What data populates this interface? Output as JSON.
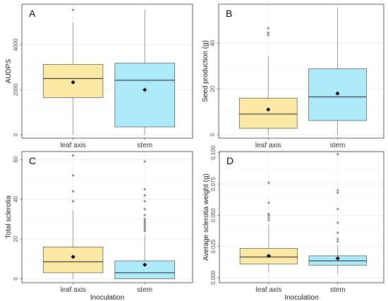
{
  "colors": {
    "leaf_axis_fill": "#FDE9A6",
    "stem_fill": "#ADEBFA",
    "box_line": "#333333",
    "whisker": "#7f7f7f",
    "outlier": "#8c8c8c",
    "mean_marker": "#000000",
    "grid": "#ebebeb",
    "panel_border": "#333333"
  },
  "chart_data": [
    {
      "type": "boxplot",
      "panel_label": "A",
      "xlabel": "",
      "ylabel": "AUDPS",
      "categories": [
        "leaf axis",
        "stem"
      ],
      "ylim": [
        -150,
        5800
      ],
      "yticks": [
        0,
        2000,
        4000
      ],
      "grid": true,
      "boxes": [
        {
          "name": "leaf axis",
          "whisker_low": 0,
          "q1": 1650,
          "median": 2500,
          "q3": 3130,
          "whisker_high": 4980,
          "mean": 2330,
          "outliers": [
            5550
          ]
        },
        {
          "name": "stem",
          "whisker_low": 0,
          "q1": 350,
          "median": 2420,
          "q3": 3180,
          "whisker_high": 5550,
          "mean": 2000,
          "outliers": []
        }
      ]
    },
    {
      "type": "boxplot",
      "panel_label": "B",
      "xlabel": "",
      "ylabel": "Seed production (g)",
      "categories": [
        "leaf axis",
        "stem"
      ],
      "ylim": [
        -1.5,
        57
      ],
      "yticks": [
        0,
        20,
        40
      ],
      "grid": true,
      "boxes": [
        {
          "name": "leaf axis",
          "whisker_low": 0,
          "q1": 2.8,
          "median": 9,
          "q3": 16,
          "whisker_high": 34.5,
          "mean": 11,
          "outliers": [
            43.5,
            44.5,
            46.5
          ]
        },
        {
          "name": "stem",
          "whisker_low": 0,
          "q1": 6.2,
          "median": 16.5,
          "q3": 28.8,
          "whisker_high": 55.5,
          "mean": 18,
          "outliers": []
        }
      ]
    },
    {
      "type": "boxplot",
      "panel_label": "C",
      "xlabel": "Inoculation",
      "ylabel": "Total sclerotia",
      "categories": [
        "leaf axis",
        "stem"
      ],
      "ylim": [
        -2,
        64
      ],
      "yticks": [
        0,
        20,
        40,
        60
      ],
      "grid": true,
      "boxes": [
        {
          "name": "leaf axis",
          "whisker_low": 0,
          "q1": 3,
          "median": 8.5,
          "q3": 16,
          "whisker_high": 34.5,
          "mean": 11,
          "outliers": [
            39,
            44,
            52,
            62
          ]
        },
        {
          "name": "stem",
          "whisker_low": 0,
          "q1": 0,
          "median": 3,
          "q3": 9,
          "whisker_high": 22,
          "mean": 7,
          "outliers": [
            24,
            25,
            26,
            27,
            28,
            29,
            30,
            32,
            35,
            39,
            42,
            45,
            59
          ]
        }
      ]
    },
    {
      "type": "boxplot",
      "panel_label": "D",
      "xlabel": "Inoculation",
      "ylabel": "Average sclerotia weight (g)",
      "categories": [
        "leaf axis",
        "stem"
      ],
      "ylim": [
        -0.004,
        0.101
      ],
      "yticks": [
        0,
        0.025,
        0.05,
        0.075,
        0.1
      ],
      "ytick_labels": [
        "0.000",
        "0.025",
        "0.050",
        "0.075",
        "0.100"
      ],
      "grid": true,
      "boxes": [
        {
          "name": "leaf axis",
          "whisker_low": 0.004,
          "q1": 0.011,
          "median": 0.0165,
          "q3": 0.0235,
          "whisker_high": 0.0425,
          "mean": 0.0175,
          "outliers": [
            0.046,
            0.048,
            0.05,
            0.051,
            0.06,
            0.076
          ]
        },
        {
          "name": "stem",
          "whisker_low": 0.003,
          "q1": 0.01,
          "median": 0.0135,
          "q3": 0.0175,
          "whisker_high": 0.026,
          "mean": 0.0155,
          "outliers": [
            0.029,
            0.031,
            0.036,
            0.044,
            0.055,
            0.068,
            0.07,
            0.099
          ]
        }
      ]
    }
  ]
}
